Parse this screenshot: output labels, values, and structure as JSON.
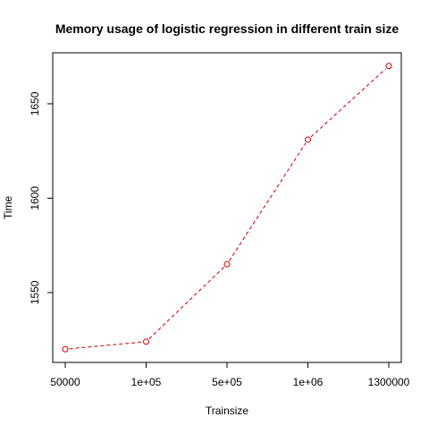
{
  "chart_data": {
    "type": "line",
    "title": "Memory usage of logistic regression in different train size",
    "xlabel": "Trainsize",
    "ylabel": "Time",
    "categories": [
      "50000",
      "1e+05",
      "5e+05",
      "1e+06",
      "1300000"
    ],
    "series": [
      {
        "values": [
          1520,
          1524,
          1565,
          1631,
          1670
        ]
      }
    ],
    "ylim": [
      1513,
      1677
    ],
    "yticks": [
      1550,
      1600,
      1650
    ],
    "line_style": "dashed",
    "marker": "open-circle",
    "line_color": "#cc0000",
    "grid": false,
    "legend": "none"
  }
}
